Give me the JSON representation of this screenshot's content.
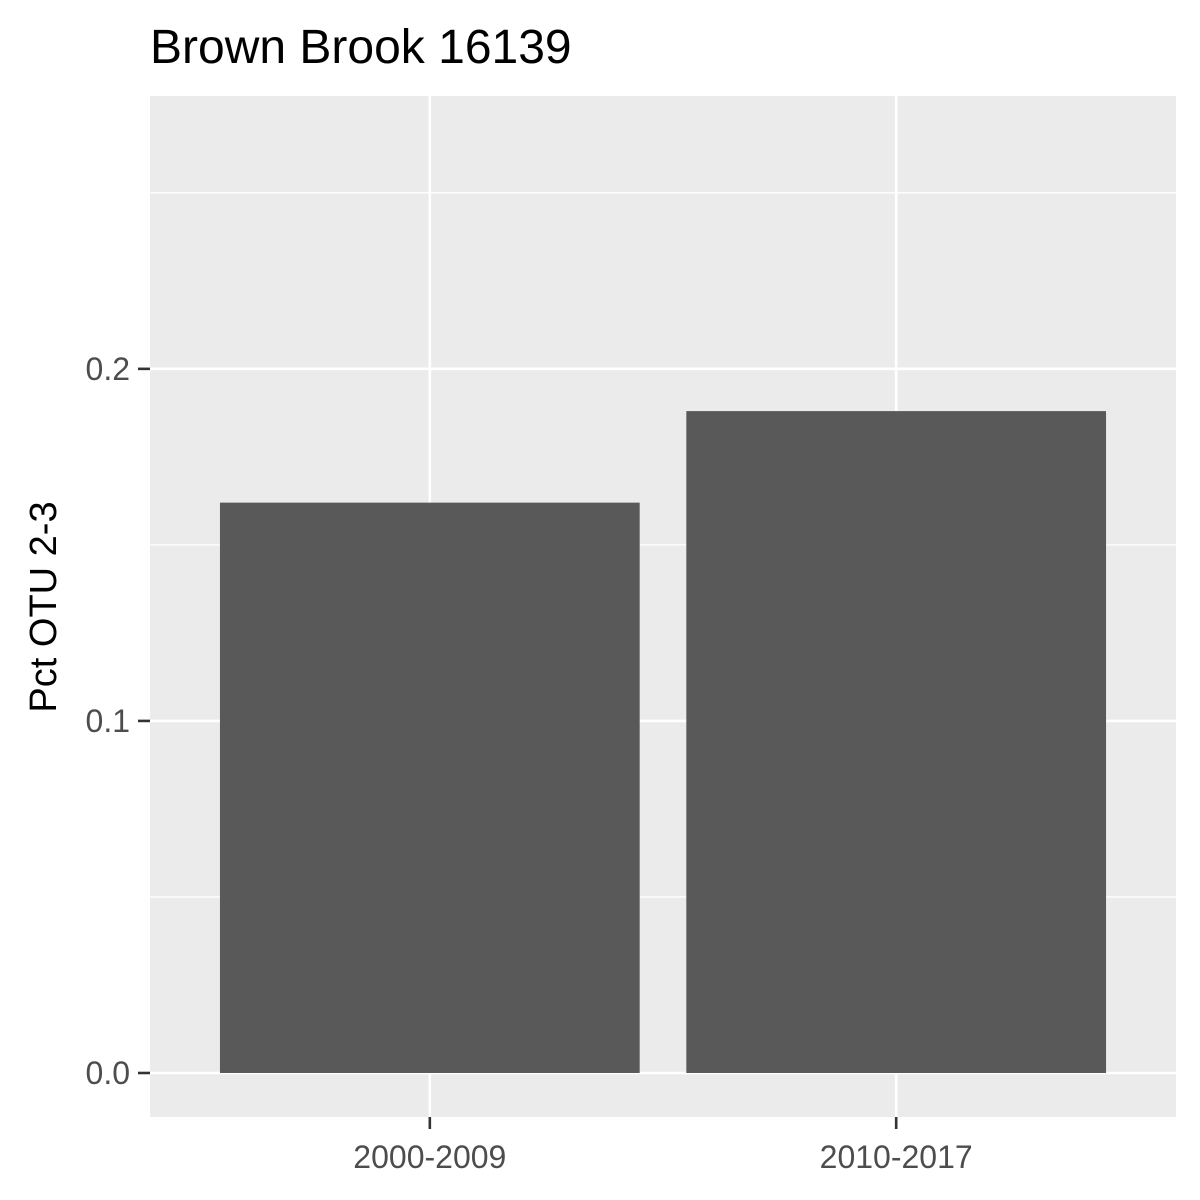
{
  "chart_data": {
    "type": "bar",
    "title": "Brown Brook 16139",
    "xlabel": "",
    "ylabel": "Pct OTU 2-3",
    "categories": [
      "2000-2009",
      "2010-2017"
    ],
    "values": [
      0.162,
      0.188
    ],
    "ylim": [
      -0.0125,
      0.2775
    ],
    "yticks": [
      0.0,
      0.1,
      0.2
    ],
    "ytick_labels": [
      "0.0",
      "0.1",
      "0.2"
    ],
    "grid": true,
    "colors": {
      "bar": "#595959",
      "panel_background": "#ebebeb",
      "grid": "#ffffff",
      "tick_text": "#4d4d4d",
      "tick_mark": "#333333"
    }
  }
}
